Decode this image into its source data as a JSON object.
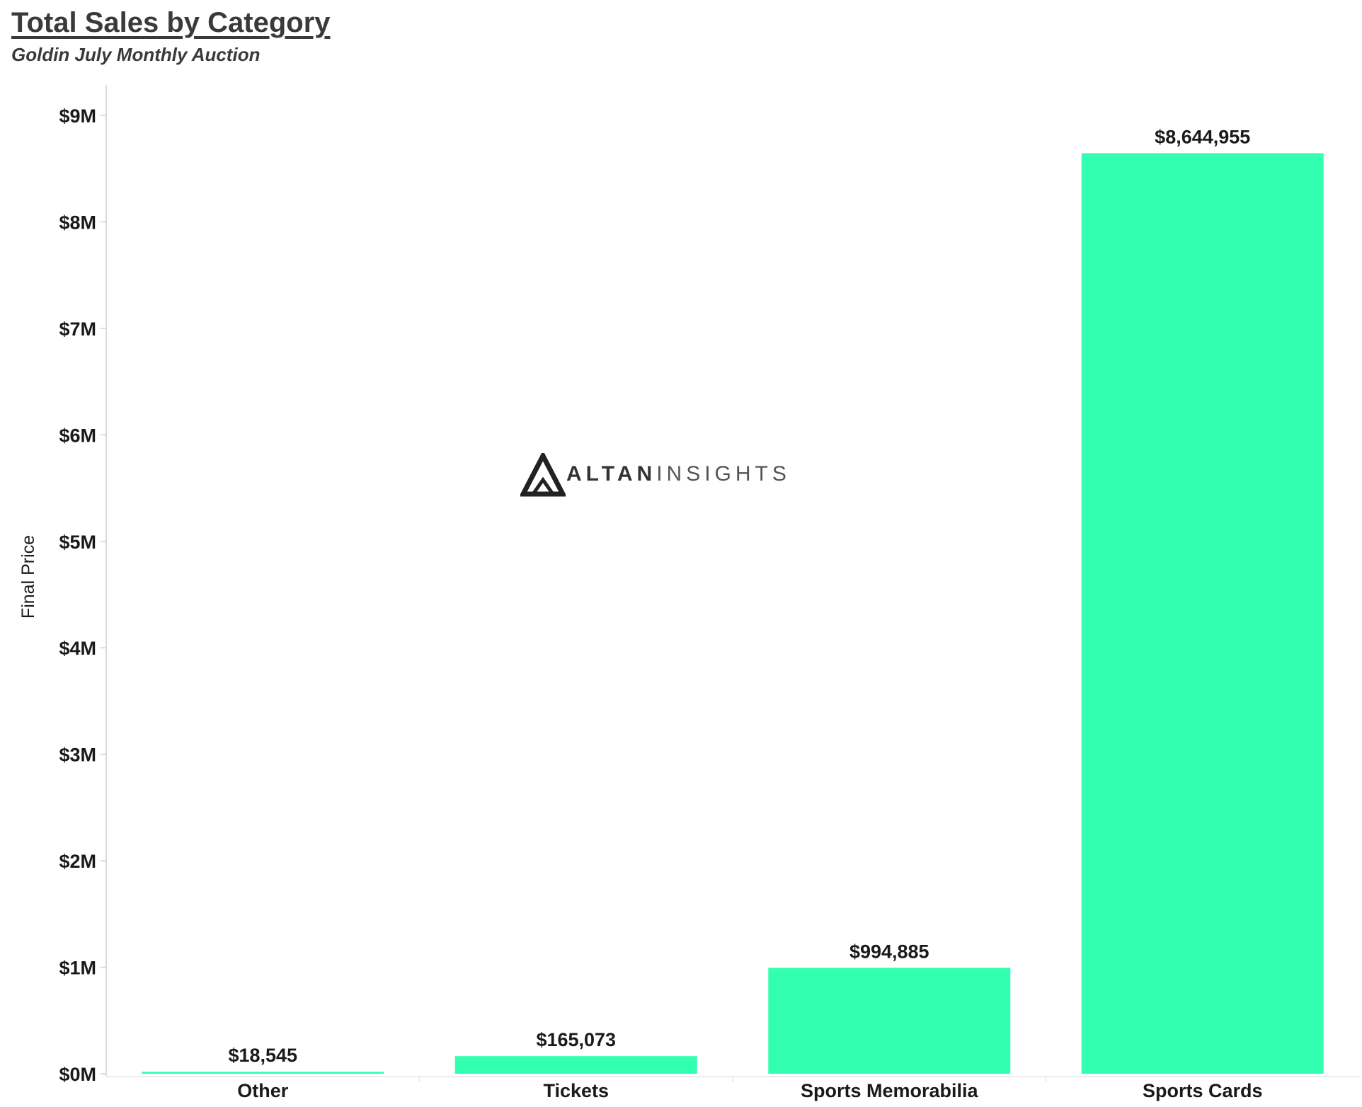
{
  "header": {
    "title": "Total Sales by Category",
    "subtitle": "Goldin July Monthly Auction"
  },
  "watermark": {
    "text_a": "ALTAN",
    "text_b": "INSIGHTS",
    "icon": "mountain-triangle-logo"
  },
  "colors": {
    "bar": "#33ffb0",
    "text": "#1a1a1a",
    "axis": "#d0d0d0",
    "title": "#3a3a3a"
  },
  "chart_data": {
    "type": "bar",
    "title": "Total Sales by Category",
    "subtitle": "Goldin July Monthly Auction",
    "xlabel": "",
    "ylabel": "Final Price",
    "categories": [
      "Other",
      "Tickets",
      "Sports Memorabilia",
      "Sports Cards"
    ],
    "values": [
      18545,
      165073,
      994885,
      8644955
    ],
    "data_labels": [
      "$18,545",
      "$165,073",
      "$994,885",
      "$8,644,955"
    ],
    "ylim": [
      0,
      9300000
    ],
    "yticks": [
      0,
      1000000,
      2000000,
      3000000,
      4000000,
      5000000,
      6000000,
      7000000,
      8000000,
      9000000
    ],
    "ytick_labels": [
      "$0M",
      "$1M",
      "$2M",
      "$3M",
      "$4M",
      "$5M",
      "$6M",
      "$7M",
      "$8M",
      "$9M"
    ],
    "grid": false,
    "legend": "none"
  }
}
